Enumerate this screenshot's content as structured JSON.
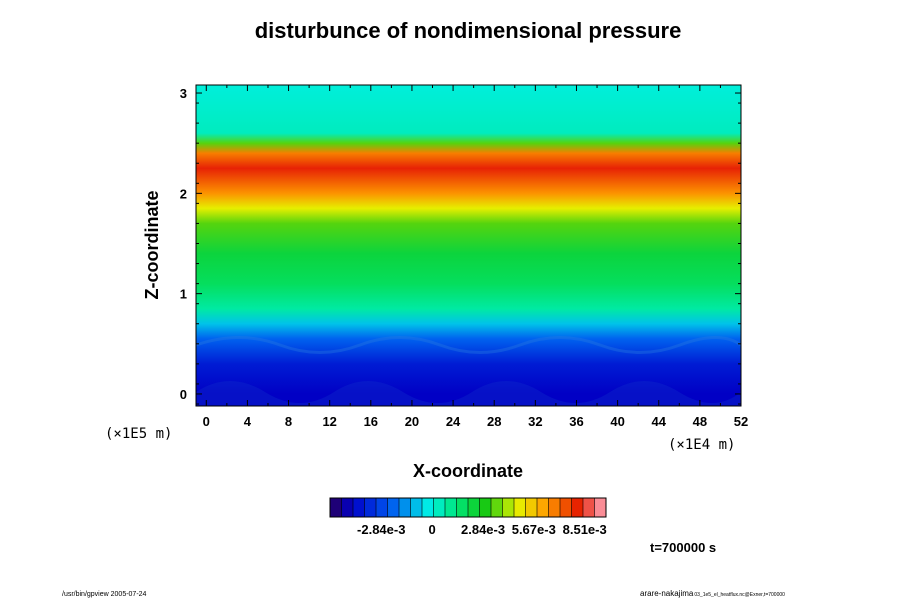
{
  "chart_data": {
    "type": "heatmap",
    "title": "disturbunce of nondimensional pressure",
    "xlabel": "X-coordinate",
    "ylabel": "Z-coordinate",
    "x_scale_note": "(×1E4 m)",
    "y_scale_note": "(×1E5 m)",
    "xlim": [
      -1,
      52
    ],
    "ylim": [
      -0.12,
      3.08
    ],
    "x_ticks": [
      "0",
      "4",
      "8",
      "12",
      "16",
      "20",
      "24",
      "28",
      "32",
      "36",
      "40",
      "44",
      "48",
      "52"
    ],
    "y_ticks": [
      "0",
      "1",
      "2",
      "3"
    ],
    "z_profile": [
      {
        "z": -0.12,
        "v": -0.0045
      },
      {
        "z": 0.0,
        "v": -0.0045
      },
      {
        "z": 0.3,
        "v": -0.0038
      },
      {
        "z": 0.55,
        "v": -0.0022
      },
      {
        "z": 0.7,
        "v": -0.0008
      },
      {
        "z": 0.85,
        "v": 0.0008
      },
      {
        "z": 1.1,
        "v": 0.0018
      },
      {
        "z": 1.4,
        "v": 0.0023
      },
      {
        "z": 1.7,
        "v": 0.0035
      },
      {
        "z": 1.85,
        "v": 0.0048
      },
      {
        "z": 2.0,
        "v": 0.0065
      },
      {
        "z": 2.25,
        "v": 0.0082
      },
      {
        "z": 2.4,
        "v": 0.0068
      },
      {
        "z": 2.5,
        "v": 0.0035
      },
      {
        "z": 2.6,
        "v": 0.0004
      },
      {
        "z": 3.08,
        "v": 0.0
      }
    ],
    "colorbar": {
      "vmin": -0.0057,
      "vmax": 0.0097,
      "tick_values": [
        -0.00284,
        0,
        0.00284,
        0.00567,
        0.00851
      ],
      "tick_labels": [
        "-2.84e-3",
        "0",
        "2.84e-3",
        "5.67e-3",
        "8.51e-3"
      ],
      "n_levels": 24
    },
    "time_label": "t=700000 s",
    "grid": false
  },
  "footer": {
    "left": "/usr/bin/gpview 2005-07-24",
    "right_main": "arare-nakajima",
    "right_small": "03_1e5_el_heatflux.nc@Exner,t=700000"
  }
}
